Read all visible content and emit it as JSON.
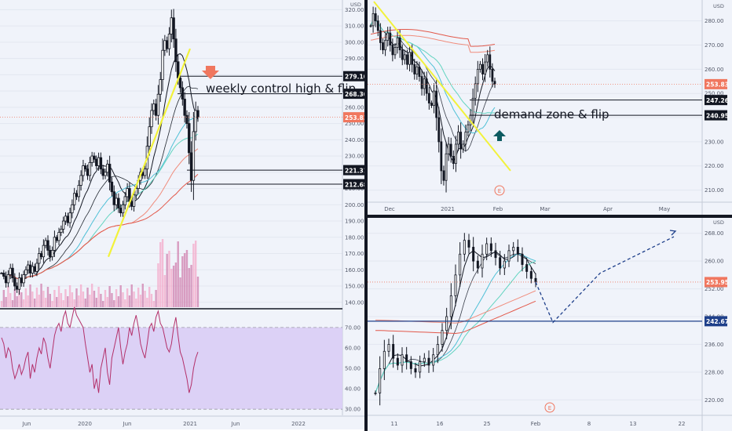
{
  "chart_data": [
    {
      "id": "weekly",
      "type": "candlestick",
      "axis": {
        "currency": "USD",
        "y_ticks": [
          "140.00",
          "150.00",
          "160.00",
          "170.00",
          "180.00",
          "190.00",
          "200.00",
          "210.00",
          "220.00",
          "230.00",
          "240.00",
          "250.00",
          "260.00",
          "270.00",
          "280.00",
          "290.00",
          "300.00",
          "310.00",
          "320.00"
        ],
        "x_ticks": [
          "Jun",
          "2020",
          "Jun",
          "2021",
          "Jun",
          "2022"
        ],
        "ylim": [
          137,
          325
        ],
        "rsi_ticks": [
          "30.00",
          "40.00",
          "50.00",
          "60.00",
          "70.00"
        ],
        "rsi_ylim": [
          27,
          78
        ]
      },
      "price_labels": [
        {
          "text": "279.10",
          "value": 279.1,
          "style": "black"
        },
        {
          "text": "268.30",
          "value": 268.3,
          "style": "black"
        },
        {
          "text": "253.83",
          "value": 253.83,
          "style": "red"
        },
        {
          "text": "221.31",
          "value": 221.31,
          "style": "black"
        },
        {
          "text": "212.68",
          "value": 212.68,
          "style": "black"
        }
      ],
      "annotations": [
        "weekly control high & flip"
      ],
      "close_series": [
        158,
        156,
        152,
        157,
        161,
        155,
        150,
        148,
        155,
        152,
        157,
        160,
        163,
        158,
        162,
        159,
        164,
        170,
        168,
        175,
        178,
        172,
        168,
        172,
        180,
        178,
        183,
        185,
        190,
        193,
        189,
        195,
        200,
        207,
        205,
        212,
        218,
        224,
        222,
        218,
        226,
        230,
        228,
        224,
        229,
        222,
        218,
        220,
        225,
        214,
        208,
        200,
        204,
        198,
        195,
        200,
        205,
        210,
        202,
        199,
        206,
        210,
        215,
        220,
        218,
        222,
        236,
        248,
        258,
        262,
        255,
        268,
        277,
        295,
        301,
        296,
        305,
        315,
        302,
        288,
        278,
        272,
        265,
        255,
        250,
        232,
        215,
        245,
        258,
        253.83
      ],
      "rsi_series": [
        65,
        62,
        55,
        60,
        58,
        50,
        45,
        48,
        52,
        47,
        50,
        55,
        58,
        45,
        52,
        48,
        55,
        60,
        57,
        65,
        62,
        55,
        50,
        58,
        66,
        70,
        72,
        68,
        75,
        78,
        72,
        70,
        75,
        80,
        76,
        74,
        72,
        70,
        62,
        55,
        48,
        52,
        40,
        45,
        38,
        50,
        55,
        60,
        48,
        42,
        55,
        60,
        65,
        70,
        60,
        52,
        58,
        62,
        70,
        66,
        72,
        76,
        70,
        62,
        58,
        55,
        62,
        70,
        72,
        68,
        75,
        78,
        72,
        70,
        65,
        60,
        58,
        62,
        70,
        75,
        66,
        58,
        55,
        50,
        45,
        38,
        42,
        50,
        55,
        58
      ]
    },
    {
      "id": "daily",
      "type": "candlestick",
      "axis": {
        "currency": "USD",
        "y_ticks": [
          "210.00",
          "220.00",
          "230.00",
          "240.00",
          "250.00",
          "260.00",
          "270.00",
          "280.00"
        ],
        "x_ticks": [
          "Dec",
          "2021",
          "Feb",
          "Mar",
          "Apr",
          "May"
        ],
        "ylim": [
          205,
          288
        ]
      },
      "price_labels": [
        {
          "text": "253.83",
          "value": 253.83,
          "style": "red"
        },
        {
          "text": "247.26",
          "value": 247.26,
          "style": "black"
        },
        {
          "text": "240.95",
          "value": 240.95,
          "style": "black"
        }
      ],
      "annotations": [
        "demand zone & flip",
        "E"
      ],
      "close_series": [
        278,
        283,
        280,
        276,
        271,
        268,
        272,
        275,
        270,
        266,
        269,
        273,
        268,
        264,
        266,
        262,
        267,
        262,
        258,
        261,
        257,
        252,
        256,
        250,
        246,
        245,
        251,
        240,
        230,
        218,
        214,
        225,
        229,
        224,
        221,
        229,
        234,
        227,
        229,
        234,
        237,
        241,
        248,
        254,
        260,
        262,
        258,
        263,
        266,
        260,
        255,
        253.83
      ]
    },
    {
      "id": "intraday",
      "type": "candlestick",
      "axis": {
        "currency": "USD",
        "y_ticks": [
          "220.00",
          "228.00",
          "236.00",
          "244.00",
          "252.00",
          "260.00",
          "268.00"
        ],
        "x_ticks": [
          "11",
          "16",
          "25",
          "Feb",
          "8",
          "13",
          "22"
        ],
        "ylim": [
          216,
          272
        ]
      },
      "price_labels": [
        {
          "text": "253.95",
          "value": 253.95,
          "style": "red"
        },
        {
          "text": "242.67",
          "value": 242.67,
          "style": "blue"
        }
      ],
      "annotations": [
        "E"
      ],
      "close_series": [
        222,
        229,
        234,
        236,
        232,
        230,
        233,
        231,
        229,
        228,
        231,
        232,
        230,
        233,
        236,
        240,
        244,
        250,
        256,
        262,
        266,
        264,
        260,
        258,
        262,
        265,
        263,
        261,
        258,
        260,
        263,
        264,
        262,
        259,
        257,
        255,
        253.95
      ],
      "projection": [
        253.95,
        242.3,
        256.5,
        267.0
      ]
    }
  ]
}
